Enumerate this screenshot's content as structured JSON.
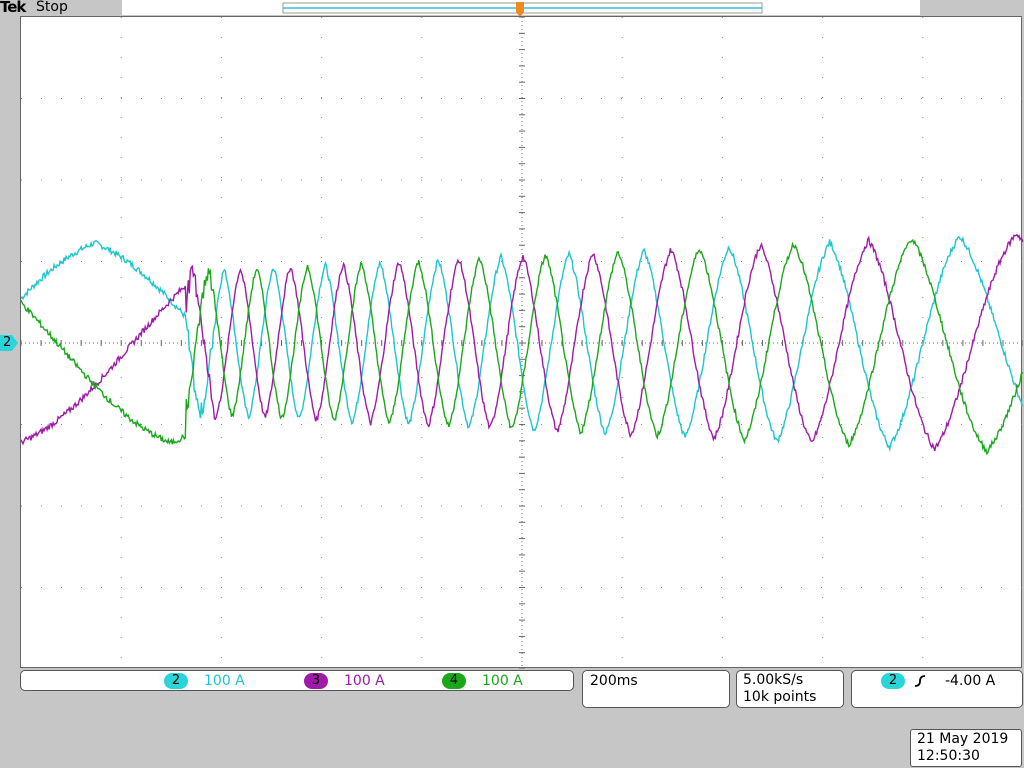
{
  "header": {
    "brand": "Tek",
    "status": "Stop"
  },
  "channel_marker": "2",
  "channels": [
    {
      "num": "2",
      "scale": "100 A",
      "color": "#1cc6cc",
      "badge": "#2ad4d8"
    },
    {
      "num": "3",
      "scale": "100 A",
      "color": "#a01aa8",
      "badge": "#a01aa8"
    },
    {
      "num": "4",
      "scale": "100 A",
      "color": "#1aa81a",
      "badge": "#1aa81a"
    }
  ],
  "timebase": "200ms",
  "acquisition": {
    "rate": "5.00kS/s",
    "points": "10k points"
  },
  "trigger": {
    "source": "2",
    "slope_icon": "rising-edge-icon",
    "level": "-4.00 A"
  },
  "datetime": {
    "date": "21 May 2019",
    "time": "12:50:30"
  },
  "chart_data": {
    "type": "line",
    "grid": true,
    "series": [
      {
        "channel": "2",
        "color": "#1cc6cc"
      },
      {
        "channel": "3",
        "color": "#a01aa8"
      },
      {
        "channel": "4",
        "color": "#1aa81a"
      }
    ]
  }
}
